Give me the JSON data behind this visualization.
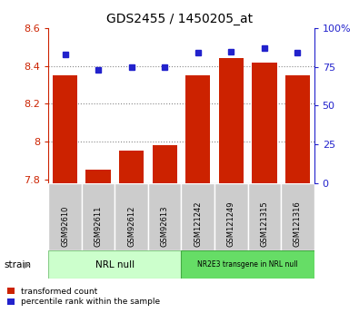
{
  "title": "GDS2455 / 1450205_at",
  "samples": [
    "GSM92610",
    "GSM92611",
    "GSM92612",
    "GSM92613",
    "GSM121242",
    "GSM121249",
    "GSM121315",
    "GSM121316"
  ],
  "bar_values": [
    8.35,
    7.85,
    7.95,
    7.98,
    8.35,
    8.44,
    8.42,
    8.35
  ],
  "dot_values_pct": [
    83,
    73,
    75,
    75,
    84,
    85,
    87,
    84
  ],
  "bar_color": "#cc2200",
  "dot_color": "#2222cc",
  "ylim_left": [
    7.78,
    8.6
  ],
  "ylim_right": [
    0,
    100
  ],
  "yticks_left": [
    7.8,
    8.0,
    8.2,
    8.4,
    8.6
  ],
  "ytick_labels_left": [
    "7.8",
    "8",
    "8.2",
    "8.4",
    "8.6"
  ],
  "yticks_right": [
    0,
    25,
    50,
    75,
    100
  ],
  "ytick_labels_right": [
    "0",
    "25",
    "50",
    "75",
    "100%"
  ],
  "group1_label": "NRL null",
  "group2_label": "NR2E3 transgene in NRL null",
  "group1_indices": [
    0,
    1,
    2,
    3
  ],
  "group2_indices": [
    4,
    5,
    6,
    7
  ],
  "group1_color": "#ccffcc",
  "group2_color": "#66dd66",
  "strain_label": "strain",
  "legend_bar_label": "transformed count",
  "legend_dot_label": "percentile rank within the sample",
  "tick_color_left": "#cc2200",
  "tick_color_right": "#2222cc",
  "bar_bottom": 7.78,
  "bar_width": 0.75,
  "grid_lines": [
    8.0,
    8.2,
    8.4
  ],
  "sample_box_color": "#cccccc",
  "sample_box_edge": "#999999"
}
